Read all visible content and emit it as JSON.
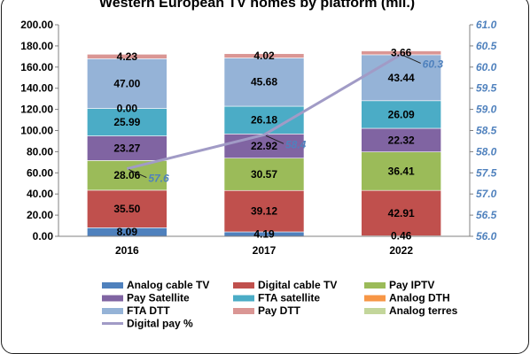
{
  "chart_data": {
    "type": "bar",
    "stacked": true,
    "title": "Western European TV homes by platform (mil.)",
    "categories": [
      "2016",
      "2017",
      "2022"
    ],
    "ylim": [
      0,
      200
    ],
    "yticks": [
      "0.00",
      "20.00",
      "40.00",
      "60.00",
      "80.00",
      "100.00",
      "120.00",
      "140.00",
      "160.00",
      "180.00",
      "200.00"
    ],
    "y2lim": [
      56.0,
      61.0
    ],
    "y2ticks": [
      "56.0",
      "56.5",
      "57.0",
      "57.5",
      "58.0",
      "58.5",
      "59.0",
      "59.5",
      "60.0",
      "60.5",
      "61.0"
    ],
    "series": [
      {
        "name": "Analog cable TV",
        "color": "#4f81bd",
        "values": [
          8.09,
          4.19,
          0.46
        ],
        "labels": [
          "8.09",
          "4.19",
          "0.46"
        ]
      },
      {
        "name": "Digital cable TV",
        "color": "#c0504d",
        "values": [
          35.5,
          39.12,
          42.91
        ],
        "labels": [
          "35.50",
          "39.12",
          "42.91"
        ]
      },
      {
        "name": "Pay IPTV",
        "color": "#9bbb59",
        "values": [
          28.06,
          30.57,
          36.41
        ],
        "labels": [
          "28.06",
          "30.57",
          "36.41"
        ]
      },
      {
        "name": "Pay Satellite",
        "color": "#8064a2",
        "values": [
          23.27,
          22.92,
          22.32
        ],
        "labels": [
          "23.27",
          "22.92",
          "22.32"
        ]
      },
      {
        "name": "FTA satellite",
        "color": "#4bacc6",
        "values": [
          25.99,
          26.18,
          26.09
        ],
        "labels": [
          "25.99",
          "26.18",
          "26.09"
        ]
      },
      {
        "name": "Analog DTH",
        "color": "#f79646",
        "values": [
          0.0,
          0.0,
          0.0
        ],
        "labels": [
          "0.00",
          "",
          ""
        ]
      },
      {
        "name": "FTA DTT",
        "color": "#95b3d7",
        "values": [
          47.0,
          45.68,
          43.44
        ],
        "labels": [
          "47.00",
          "45.68",
          "43.44"
        ]
      },
      {
        "name": "Pay DTT",
        "color": "#da9694",
        "values": [
          4.23,
          4.02,
          3.66
        ],
        "labels": [
          "4.23",
          "4.02",
          "3.66"
        ]
      },
      {
        "name": "Analog terres",
        "color": "#c3d69b",
        "values": [
          0,
          0,
          0
        ],
        "labels": [
          "",
          "",
          ""
        ]
      }
    ],
    "line": {
      "name": "Digital pay %",
      "color": "#a19bc6",
      "axis": "right",
      "values": [
        57.6,
        58.4,
        60.3
      ],
      "labels": [
        "57.6",
        "58.4",
        "60.3"
      ]
    },
    "grid": false,
    "legend_position": "bottom"
  }
}
